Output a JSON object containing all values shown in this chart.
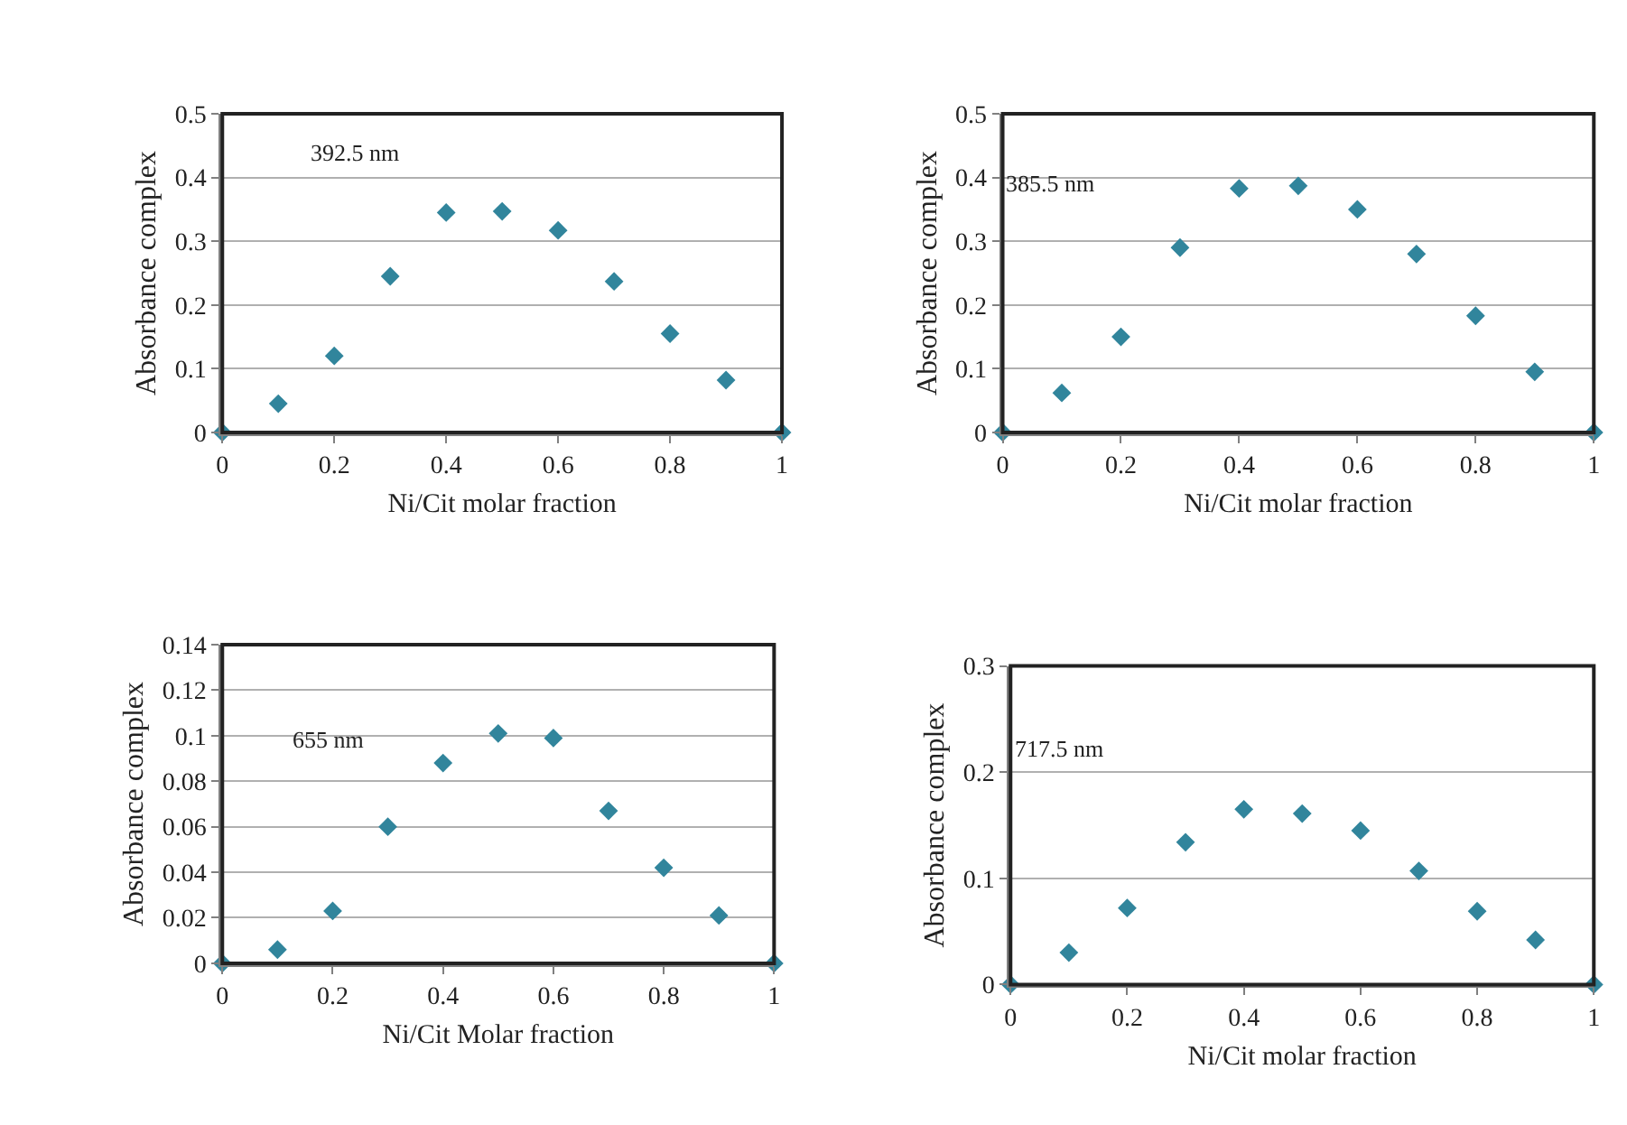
{
  "chart_data": [
    {
      "type": "scatter",
      "x": [
        0,
        0.1,
        0.2,
        0.3,
        0.4,
        0.5,
        0.6,
        0.7,
        0.8,
        0.9,
        1
      ],
      "xlabel": "Ni/Cit molar fraction",
      "ylabel": "Absorbance complex",
      "annotations": [
        "392.5 nm"
      ],
      "series": [
        {
          "color": "#31859c",
          "values": [
            0,
            0.045,
            0.12,
            0.245,
            0.345,
            0.347,
            0.317,
            0.237,
            0.155,
            0.082,
            0
          ]
        }
      ],
      "xlim": [
        0,
        1
      ],
      "xticks": [
        0,
        0.2,
        0.4,
        0.6,
        0.8,
        1
      ],
      "ylim": [
        0,
        0.5
      ],
      "yticks": [
        0,
        0.1,
        0.2,
        0.3,
        0.4,
        0.5
      ],
      "grid": "y",
      "marker": "diamond"
    },
    {
      "type": "scatter",
      "x": [
        0,
        0.1,
        0.2,
        0.3,
        0.4,
        0.5,
        0.6,
        0.7,
        0.8,
        0.9,
        1
      ],
      "xlabel": "Ni/Cit molar fraction",
      "ylabel": "Absorbance complex",
      "annotations": [
        "385.5 nm"
      ],
      "series": [
        {
          "color": "#31859c",
          "values": [
            0,
            0.062,
            0.15,
            0.29,
            0.383,
            0.387,
            0.35,
            0.28,
            0.183,
            0.095,
            0
          ]
        }
      ],
      "xlim": [
        0,
        1
      ],
      "xticks": [
        0,
        0.2,
        0.4,
        0.6,
        0.8,
        1
      ],
      "ylim": [
        0,
        0.5
      ],
      "yticks": [
        0,
        0.1,
        0.2,
        0.3,
        0.4,
        0.5
      ],
      "grid": "y",
      "marker": "diamond"
    },
    {
      "type": "scatter",
      "x": [
        0,
        0.1,
        0.2,
        0.3,
        0.4,
        0.5,
        0.6,
        0.7,
        0.8,
        0.9,
        1
      ],
      "xlabel": "Ni/Cit Molar fraction",
      "ylabel": "Absorbance complex",
      "annotations": [
        "655 nm"
      ],
      "series": [
        {
          "color": "#31859c",
          "values": [
            0,
            0.006,
            0.023,
            0.06,
            0.088,
            0.101,
            0.099,
            0.067,
            0.042,
            0.021,
            0
          ]
        }
      ],
      "xlim": [
        0,
        1
      ],
      "xticks": [
        0,
        0.2,
        0.4,
        0.6,
        0.8,
        1
      ],
      "ylim": [
        0,
        0.14
      ],
      "yticks": [
        0,
        0.02,
        0.04,
        0.06,
        0.08,
        0.1,
        0.12,
        0.14
      ],
      "grid": "y",
      "marker": "diamond"
    },
    {
      "type": "scatter",
      "x": [
        0,
        0.1,
        0.2,
        0.3,
        0.4,
        0.5,
        0.6,
        0.7,
        0.8,
        0.9,
        1
      ],
      "xlabel": "Ni/Cit molar fraction",
      "ylabel": "Absorbance complex",
      "annotations": [
        "717.5 nm"
      ],
      "series": [
        {
          "color": "#31859c",
          "values": [
            0,
            0.03,
            0.072,
            0.134,
            0.165,
            0.161,
            0.145,
            0.107,
            0.069,
            0.042,
            0
          ]
        }
      ],
      "xlim": [
        0,
        1
      ],
      "xticks": [
        0,
        0.2,
        0.4,
        0.6,
        0.8,
        1
      ],
      "ylim": [
        0,
        0.3
      ],
      "yticks": [
        0,
        0.1,
        0.2,
        0.3
      ],
      "grid": "y",
      "marker": "diamond"
    }
  ]
}
